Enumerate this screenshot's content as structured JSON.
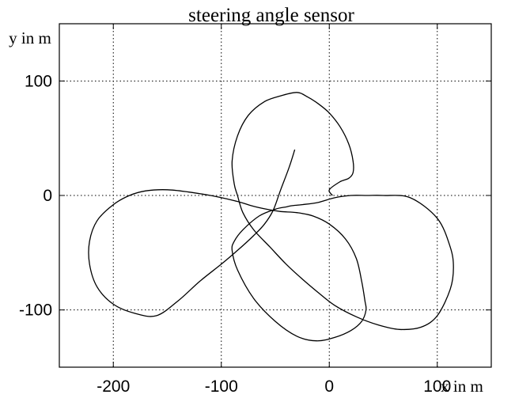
{
  "chart_data": {
    "type": "line",
    "title": "steering angle sensor",
    "xlabel": "x in m",
    "ylabel": "y in m",
    "xlim": [
      -250,
      150
    ],
    "ylim": [
      -150,
      150
    ],
    "x_ticks": [
      -200,
      -100,
      0,
      100
    ],
    "y_ticks": [
      -100,
      0,
      100
    ],
    "x_tick_labels": [
      "-200",
      "-100",
      "0",
      "100"
    ],
    "y_tick_labels": [
      "-100",
      "0",
      "100"
    ],
    "grid": true,
    "grid_style": "dotted",
    "line_color": "#000000",
    "series": [
      {
        "x": [
          -32,
          -37,
          -45,
          -52,
          -60,
          -70,
          -85,
          -100,
          -120,
          -140,
          -160,
          -180,
          -200,
          -215,
          -222,
          -222,
          -215,
          -200,
          -185,
          -170,
          -150,
          -130,
          -110,
          -95,
          -82,
          -72,
          -58,
          -45,
          -30,
          -15,
          0,
          15,
          25,
          30,
          33,
          34,
          30,
          20,
          5,
          -12,
          -30,
          -50,
          -70,
          -85,
          -90,
          -88,
          -80,
          -65,
          -50,
          -40,
          -35,
          -25,
          -10,
          5,
          20,
          35,
          50,
          75,
          100,
          112,
          115,
          112,
          100,
          85,
          65,
          45,
          25,
          5,
          -10,
          -25,
          -40,
          -55,
          -70,
          -80,
          -85,
          -88,
          -90,
          -85,
          -75,
          -60,
          -45,
          -30,
          -20,
          -10,
          0,
          10,
          18,
          22,
          22,
          18,
          10,
          0,
          3
        ],
        "y": [
          40,
          25,
          5,
          -13,
          -25,
          -35,
          -48,
          -60,
          -75,
          -92,
          -105,
          -103,
          -95,
          -80,
          -60,
          -40,
          -22,
          -8,
          0,
          4,
          5,
          3,
          0,
          -3,
          -6,
          -9,
          -12,
          -14,
          -15,
          -18,
          -25,
          -38,
          -55,
          -75,
          -92,
          -100,
          -110,
          -118,
          -124,
          -127,
          -123,
          -110,
          -90,
          -65,
          -48,
          -40,
          -30,
          -18,
          -12,
          -10,
          -9,
          -8,
          -6,
          -2,
          0,
          0,
          0,
          -2,
          -20,
          -45,
          -63,
          -82,
          -105,
          -115,
          -117,
          -113,
          -106,
          -96,
          -85,
          -73,
          -60,
          -45,
          -30,
          -15,
          0,
          10,
          30,
          52,
          70,
          82,
          87,
          90,
          86,
          80,
          72,
          60,
          45,
          30,
          20,
          15,
          12,
          5,
          0
        ]
      }
    ]
  }
}
